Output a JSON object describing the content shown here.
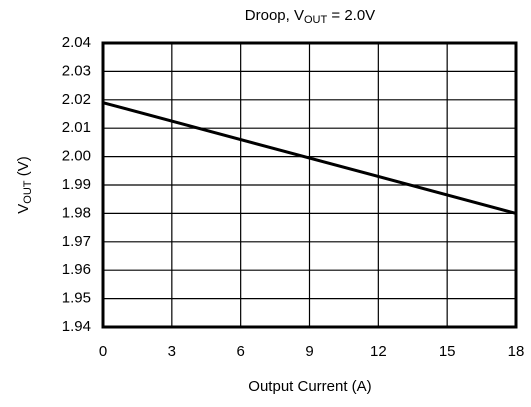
{
  "chart_data": {
    "type": "line",
    "title": [
      "Droop, V",
      "OUT",
      " = 2.0V"
    ],
    "xlabel": "Output Current (A)",
    "ylabel": [
      "V",
      "OUT",
      " (V)"
    ],
    "x": [
      0,
      18
    ],
    "series": [
      {
        "color": "#000000",
        "values": [
          2.019,
          1.98
        ]
      }
    ],
    "xlim": [
      0,
      18
    ],
    "xticks": [
      0,
      3,
      6,
      9,
      12,
      15,
      18
    ],
    "ylim": [
      1.94,
      2.04
    ],
    "yticks": [
      1.94,
      1.95,
      1.96,
      1.97,
      1.98,
      1.99,
      {
        "value": 2.0,
        "label": "2.00"
      },
      2.01,
      2.02,
      2.03,
      2.04
    ],
    "grid": true
  }
}
